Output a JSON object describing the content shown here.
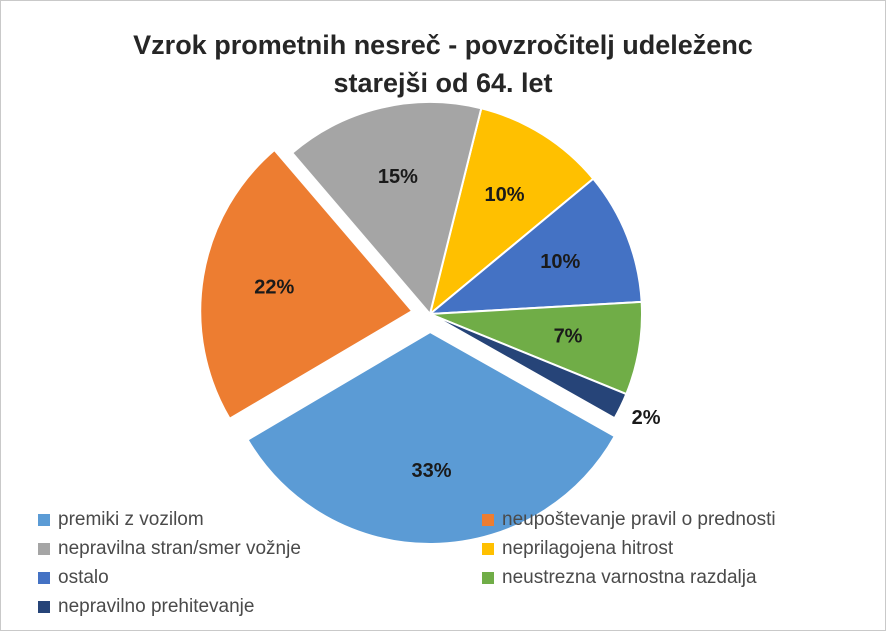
{
  "chart_data": {
    "type": "pie",
    "title_lines": [
      "Vzrok prometnih nesreč - povzročitelj udeleženc",
      "starejši od 64. let"
    ],
    "legend_placement": "bottom",
    "slices": [
      {
        "category": "premiki z vozilom",
        "value": 33,
        "label": "33%",
        "color": "#5b9bd5",
        "exploded": true
      },
      {
        "category": "neupoštevanje pravil o prednosti",
        "value": 22,
        "label": "22%",
        "color": "#ed7d31",
        "exploded": true
      },
      {
        "category": "nepravilna stran/smer vožnje",
        "value": 15,
        "label": "15%",
        "color": "#a5a5a5",
        "exploded": false
      },
      {
        "category": "neprilagojena hitrost",
        "value": 10,
        "label": "10%",
        "color": "#ffc000",
        "exploded": false
      },
      {
        "category": "ostalo",
        "value": 10,
        "label": "10%",
        "color": "#4472c4",
        "exploded": false
      },
      {
        "category": "neustrezna varnostna razdalja",
        "value": 7,
        "label": "7%",
        "color": "#70ad47",
        "exploded": false
      },
      {
        "category": "nepravilno prehitevanje",
        "value": 2,
        "label": "2%",
        "color": "#264478",
        "exploded": false
      }
    ],
    "pie_order": [
      3,
      4,
      5,
      6,
      0,
      1,
      2
    ]
  }
}
